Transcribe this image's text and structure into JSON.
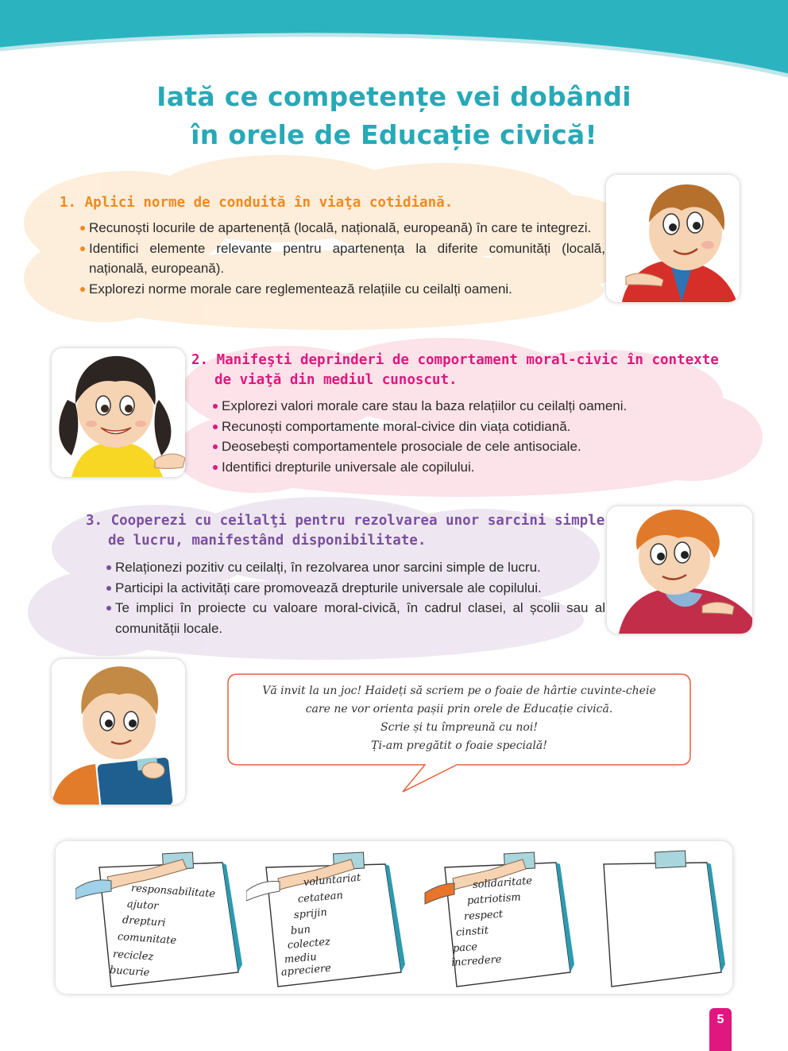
{
  "title": {
    "line1": "Iată ce competențe vei dobândi",
    "line2": "în orele de Educație civică!"
  },
  "competences": [
    {
      "heading": "1. Aplici norme de conduită în viaţa cotidiană.",
      "bullets": [
        "Recunoști locurile de apartenență (locală, națională, europeană) în care te integrezi.",
        "Identifici elemente relevante pentru apartenența la diferite comunități (locală, națională, europeană).",
        "Explorezi norme morale care reglementează relațiile cu ceilalți oameni."
      ]
    },
    {
      "heading_line1": "2. Manifeşti deprinderi de comportament moral-civic în contexte",
      "heading_line2": "de viaţă din mediul cunoscut.",
      "bullets": [
        "Explorezi valori morale care stau la baza relațiilor cu ceilalți oameni.",
        "Recunoști comportamente moral-civice din viața cotidiană.",
        "Deosebești comportamentele prosociale de cele antisociale.",
        "Identifici drepturile universale ale copilului."
      ]
    },
    {
      "heading_line1": "3. Cooperezi cu ceilalţi pentru rezolvarea unor sarcini simple",
      "heading_line2": "de lucru, manifestând disponibilitate.",
      "bullets": [
        "Relaționezi pozitiv cu ceilalți, în rezolvarea unor sarcini simple de lucru.",
        "Participi la activități care promovează drepturile universale ale copilului.",
        "Te implici în proiecte cu valoare moral-civică, în cadrul clasei, al școlii sau al comunității locale."
      ]
    }
  ],
  "speech_bubble": {
    "lines": [
      "Vă invit la un joc! Haideți să scriem pe o foaie de hârtie cuvinte-cheie",
      "care ne vor orienta pașii prin orele de Educație civică.",
      "Scrie și tu împreună cu noi!",
      "Ți-am pregătit o foaie specială!"
    ]
  },
  "sheets": [
    {
      "words": [
        "responsabilitate",
        "ajutor",
        "drepturi",
        "comunitate",
        "reciclez",
        "bucurie"
      ]
    },
    {
      "words": [
        "voluntariat",
        "cetatean",
        "sprijin",
        "bun",
        "colectez",
        "mediu",
        "apreciere"
      ]
    },
    {
      "words": [
        "solidaritate",
        "patriotism",
        "respect",
        "cinstit",
        "pace",
        "încredere"
      ]
    },
    {
      "words": []
    }
  ],
  "page_number": "5",
  "colors": {
    "teal": "#27a9b7",
    "orange": "#f08a1e",
    "magenta": "#e0177f",
    "purple": "#7b4fa0"
  },
  "icons": [
    "boy-pointing-illustration",
    "girl-pigtails-illustration",
    "boy-red-hoodie-illustration",
    "boy-clipboard-illustration",
    "hand-holding-clipboard-illustration"
  ]
}
